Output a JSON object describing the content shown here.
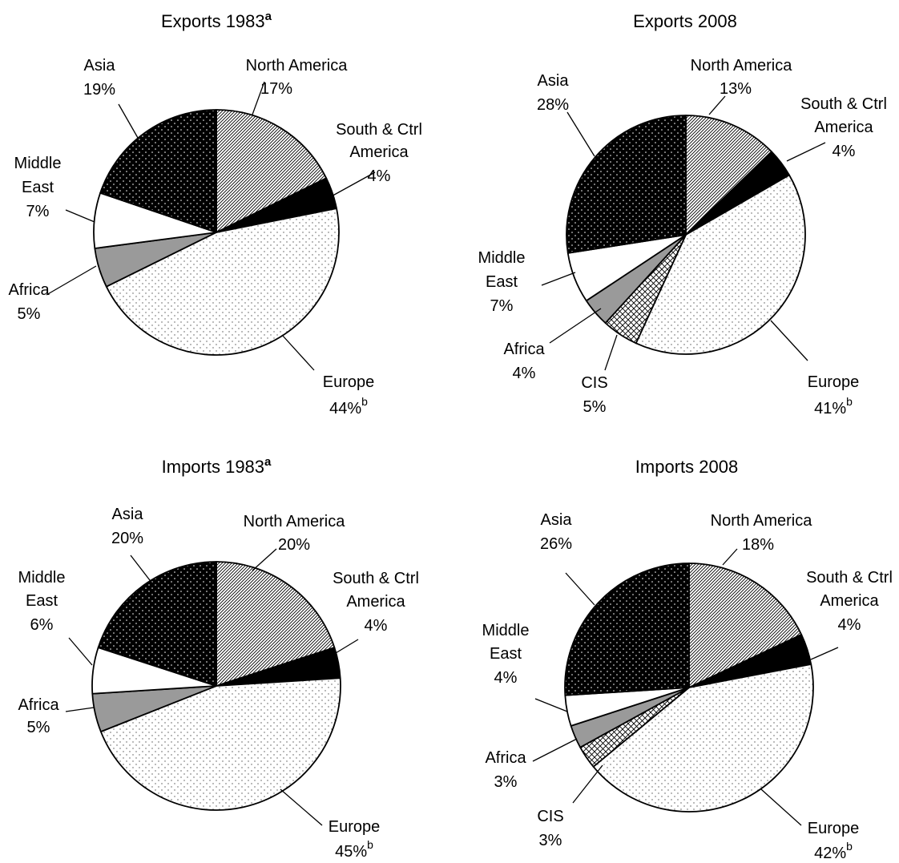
{
  "chart_data": [
    {
      "type": "pie",
      "title": "Exports 1983",
      "title_superscript": "a",
      "slices": [
        {
          "label": "North America",
          "value": 17,
          "value_label": "17%",
          "pattern": "diagonal"
        },
        {
          "label": "South & Ctrl America",
          "value": 4,
          "value_label": "4%",
          "pattern": "black"
        },
        {
          "label": "Europe",
          "value": 44,
          "value_label": "44%",
          "value_superscript": "b",
          "pattern": "dots-light"
        },
        {
          "label": "Africa",
          "value": 5,
          "value_label": "5%",
          "pattern": "gray"
        },
        {
          "label": "Middle East",
          "value": 7,
          "value_label": "7%",
          "pattern": "white"
        },
        {
          "label": "Asia",
          "value": 19,
          "value_label": "19%",
          "pattern": "dots-dark"
        }
      ]
    },
    {
      "type": "pie",
      "title": "Exports 2008",
      "title_superscript": "",
      "slices": [
        {
          "label": "North America",
          "value": 13,
          "value_label": "13%",
          "pattern": "diagonal"
        },
        {
          "label": "South & Ctrl America",
          "value": 4,
          "value_label": "4%",
          "pattern": "black"
        },
        {
          "label": "Europe",
          "value": 41,
          "value_label": "41%",
          "value_superscript": "b",
          "pattern": "dots-light"
        },
        {
          "label": "CIS",
          "value": 5,
          "value_label": "5%",
          "pattern": "crosshatch"
        },
        {
          "label": "Africa",
          "value": 4,
          "value_label": "4%",
          "pattern": "gray"
        },
        {
          "label": "Middle East",
          "value": 7,
          "value_label": "7%",
          "pattern": "white"
        },
        {
          "label": "Asia",
          "value": 28,
          "value_label": "28%",
          "pattern": "dots-dark"
        }
      ]
    },
    {
      "type": "pie",
      "title": "Imports 1983",
      "title_superscript": "a",
      "slices": [
        {
          "label": "North America",
          "value": 20,
          "value_label": "20%",
          "pattern": "diagonal"
        },
        {
          "label": "South & Ctrl America",
          "value": 4,
          "value_label": "4%",
          "pattern": "black"
        },
        {
          "label": "Europe",
          "value": 45,
          "value_label": "45%",
          "value_superscript": "b",
          "pattern": "dots-light"
        },
        {
          "label": "Africa",
          "value": 5,
          "value_label": "5%",
          "pattern": "gray"
        },
        {
          "label": "Middle East",
          "value": 6,
          "value_label": "6%",
          "pattern": "white"
        },
        {
          "label": "Asia",
          "value": 20,
          "value_label": "20%",
          "pattern": "dots-dark"
        }
      ]
    },
    {
      "type": "pie",
      "title": "Imports 2008",
      "title_superscript": "",
      "slices": [
        {
          "label": "North America",
          "value": 18,
          "value_label": "18%",
          "pattern": "diagonal"
        },
        {
          "label": "South & Ctrl America",
          "value": 4,
          "value_label": "4%",
          "pattern": "black"
        },
        {
          "label": "Europe",
          "value": 42,
          "value_label": "42%",
          "value_superscript": "b",
          "pattern": "dots-light"
        },
        {
          "label": "CIS",
          "value": 3,
          "value_label": "3%",
          "pattern": "crosshatch"
        },
        {
          "label": "Africa",
          "value": 3,
          "value_label": "3%",
          "pattern": "gray"
        },
        {
          "label": "Middle East",
          "value": 4,
          "value_label": "4%",
          "pattern": "white"
        },
        {
          "label": "Asia",
          "value": 26,
          "value_label": "26%",
          "pattern": "dots-dark"
        }
      ]
    }
  ]
}
